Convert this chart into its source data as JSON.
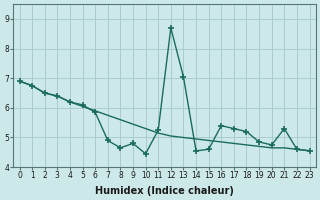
{
  "xlabel": "Humidex (Indice chaleur)",
  "background_color": "#cce8e8",
  "grid_color": "#aacccc",
  "line_color": "#1a6b5e",
  "x": [
    0,
    1,
    2,
    3,
    4,
    5,
    6,
    7,
    8,
    9,
    10,
    11,
    12,
    13,
    14,
    15,
    16,
    17,
    18,
    19,
    20,
    21,
    22,
    23
  ],
  "y_data": [
    6.9,
    6.75,
    6.5,
    6.4,
    6.2,
    6.1,
    5.85,
    4.9,
    4.65,
    4.8,
    4.45,
    5.25,
    8.7,
    7.05,
    4.55,
    4.6,
    5.4,
    5.3,
    5.2,
    4.85,
    4.75,
    5.3,
    4.6,
    4.55
  ],
  "y_trend": [
    6.9,
    6.75,
    6.5,
    6.4,
    6.2,
    6.05,
    5.9,
    5.75,
    5.6,
    5.45,
    5.3,
    5.15,
    5.05,
    5.0,
    4.95,
    4.9,
    4.85,
    4.8,
    4.75,
    4.7,
    4.65,
    4.65,
    4.6,
    4.55
  ],
  "ylim": [
    4.0,
    9.5
  ],
  "yticks": [
    4,
    5,
    6,
    7,
    8,
    9
  ],
  "xticks": [
    0,
    1,
    2,
    3,
    4,
    5,
    6,
    7,
    8,
    9,
    10,
    11,
    12,
    13,
    14,
    15,
    16,
    17,
    18,
    19,
    20,
    21,
    22,
    23
  ],
  "marker": "+",
  "markersize": 4,
  "markeredgewidth": 1.2,
  "linewidth": 1.0,
  "tick_fontsize": 5.5,
  "label_fontsize": 7
}
